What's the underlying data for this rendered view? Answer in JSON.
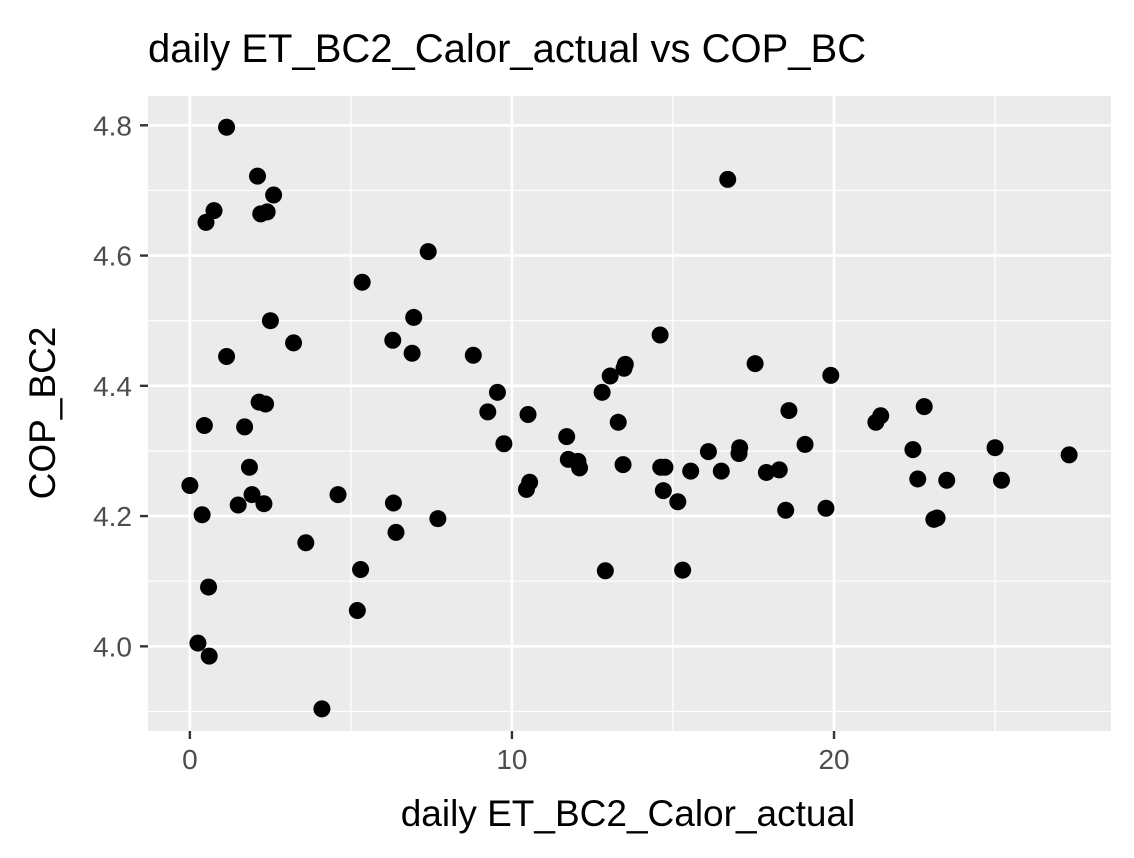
{
  "chart_data": {
    "type": "scatter",
    "title": "daily ET_BC2_Calor_actual vs COP_BC",
    "xlabel": "daily ET_BC2_Calor_actual",
    "ylabel": "COP_BC2",
    "xlim": [
      -1.3,
      28.6
    ],
    "ylim": [
      3.87,
      4.845
    ],
    "x_ticks": [
      0,
      10,
      20
    ],
    "x_tick_labels": [
      "0",
      "10",
      "20"
    ],
    "y_ticks": [
      4.0,
      4.2,
      4.4,
      4.6,
      4.8
    ],
    "y_tick_labels": [
      "4.0",
      "4.2",
      "4.4",
      "4.6",
      "4.8"
    ],
    "grid": true,
    "panel_background": "#ebebeb",
    "gridline_color": "#ffffff",
    "point_color": "#000000",
    "points": [
      {
        "x": 0.0,
        "y": 4.247
      },
      {
        "x": 0.25,
        "y": 4.005
      },
      {
        "x": 0.38,
        "y": 4.202
      },
      {
        "x": 0.45,
        "y": 4.339
      },
      {
        "x": 0.5,
        "y": 4.651
      },
      {
        "x": 0.58,
        "y": 4.091
      },
      {
        "x": 0.6,
        "y": 3.985
      },
      {
        "x": 0.75,
        "y": 4.669
      },
      {
        "x": 1.14,
        "y": 4.797
      },
      {
        "x": 1.14,
        "y": 4.445
      },
      {
        "x": 1.5,
        "y": 4.217
      },
      {
        "x": 1.7,
        "y": 4.337
      },
      {
        "x": 1.85,
        "y": 4.275
      },
      {
        "x": 1.93,
        "y": 4.233
      },
      {
        "x": 2.1,
        "y": 4.722
      },
      {
        "x": 2.15,
        "y": 4.375
      },
      {
        "x": 2.2,
        "y": 4.664
      },
      {
        "x": 2.3,
        "y": 4.219
      },
      {
        "x": 2.35,
        "y": 4.372
      },
      {
        "x": 2.4,
        "y": 4.667
      },
      {
        "x": 2.5,
        "y": 4.5
      },
      {
        "x": 2.6,
        "y": 4.693
      },
      {
        "x": 3.22,
        "y": 4.466
      },
      {
        "x": 3.6,
        "y": 4.159
      },
      {
        "x": 4.1,
        "y": 3.904
      },
      {
        "x": 4.6,
        "y": 4.233
      },
      {
        "x": 5.2,
        "y": 4.055
      },
      {
        "x": 5.3,
        "y": 4.118
      },
      {
        "x": 5.35,
        "y": 4.559
      },
      {
        "x": 6.3,
        "y": 4.47
      },
      {
        "x": 6.32,
        "y": 4.22
      },
      {
        "x": 6.4,
        "y": 4.175
      },
      {
        "x": 6.9,
        "y": 4.45
      },
      {
        "x": 6.95,
        "y": 4.505
      },
      {
        "x": 7.4,
        "y": 4.606
      },
      {
        "x": 7.7,
        "y": 4.196
      },
      {
        "x": 8.8,
        "y": 4.447
      },
      {
        "x": 9.25,
        "y": 4.36
      },
      {
        "x": 9.55,
        "y": 4.39
      },
      {
        "x": 9.75,
        "y": 4.311
      },
      {
        "x": 10.45,
        "y": 4.241
      },
      {
        "x": 10.5,
        "y": 4.356
      },
      {
        "x": 10.55,
        "y": 4.252
      },
      {
        "x": 11.7,
        "y": 4.322
      },
      {
        "x": 11.75,
        "y": 4.287
      },
      {
        "x": 12.05,
        "y": 4.284
      },
      {
        "x": 12.1,
        "y": 4.274
      },
      {
        "x": 12.8,
        "y": 4.39
      },
      {
        "x": 12.9,
        "y": 4.116
      },
      {
        "x": 13.05,
        "y": 4.415
      },
      {
        "x": 13.3,
        "y": 4.344
      },
      {
        "x": 13.45,
        "y": 4.279
      },
      {
        "x": 13.48,
        "y": 4.427
      },
      {
        "x": 13.52,
        "y": 4.433
      },
      {
        "x": 14.6,
        "y": 4.478
      },
      {
        "x": 14.62,
        "y": 4.275
      },
      {
        "x": 14.7,
        "y": 4.239
      },
      {
        "x": 14.75,
        "y": 4.275
      },
      {
        "x": 15.15,
        "y": 4.222
      },
      {
        "x": 15.3,
        "y": 4.117
      },
      {
        "x": 15.55,
        "y": 4.269
      },
      {
        "x": 16.1,
        "y": 4.299
      },
      {
        "x": 16.5,
        "y": 4.269
      },
      {
        "x": 16.7,
        "y": 4.717
      },
      {
        "x": 17.05,
        "y": 4.296
      },
      {
        "x": 17.07,
        "y": 4.305
      },
      {
        "x": 17.55,
        "y": 4.434
      },
      {
        "x": 17.9,
        "y": 4.267
      },
      {
        "x": 18.3,
        "y": 4.271
      },
      {
        "x": 18.5,
        "y": 4.209
      },
      {
        "x": 18.6,
        "y": 4.362
      },
      {
        "x": 19.1,
        "y": 4.31
      },
      {
        "x": 19.75,
        "y": 4.212
      },
      {
        "x": 19.9,
        "y": 4.416
      },
      {
        "x": 21.3,
        "y": 4.344
      },
      {
        "x": 21.45,
        "y": 4.354
      },
      {
        "x": 22.45,
        "y": 4.302
      },
      {
        "x": 22.6,
        "y": 4.257
      },
      {
        "x": 22.8,
        "y": 4.368
      },
      {
        "x": 23.1,
        "y": 4.195
      },
      {
        "x": 23.2,
        "y": 4.197
      },
      {
        "x": 23.5,
        "y": 4.255
      },
      {
        "x": 25.0,
        "y": 4.305
      },
      {
        "x": 25.2,
        "y": 4.255
      },
      {
        "x": 27.3,
        "y": 4.294
      }
    ]
  }
}
